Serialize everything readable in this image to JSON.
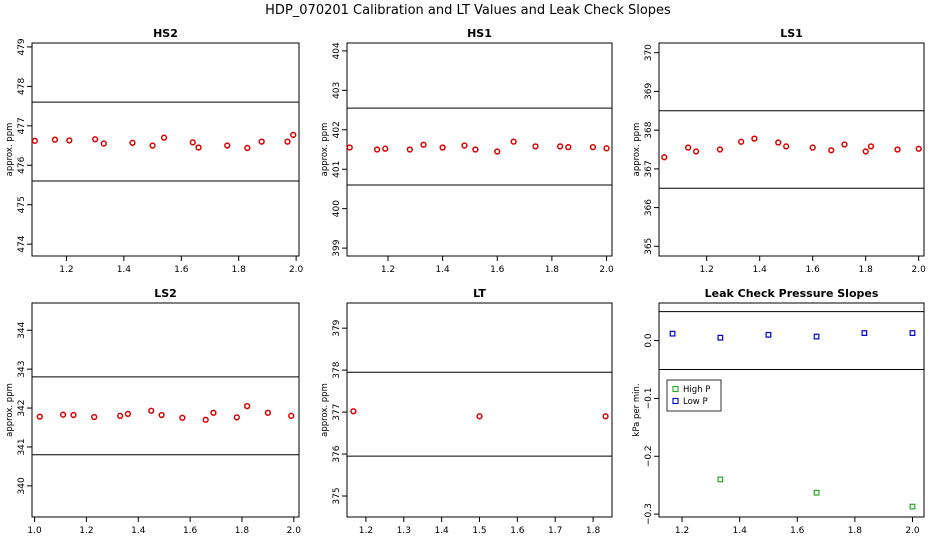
{
  "title": "HDP_070201 Calibration and LT Values and Leak Check Slopes",
  "colors": {
    "points": "#dd0000",
    "high_p": "#22aa22",
    "low_p": "#0000cc",
    "ref_line": "#000000"
  },
  "chart_data": [
    {
      "id": "hs2",
      "type": "scatter",
      "title": "HS2",
      "ylabel": "approx. ppm",
      "xlim": [
        1.08,
        2.01
      ],
      "ylim": [
        473.7,
        479.1
      ],
      "xticks": [
        1.2,
        1.4,
        1.6,
        1.8,
        2.0
      ],
      "xtick_labels": [
        "1.2",
        "1.4",
        "1.6",
        "1.8",
        "2.0"
      ],
      "yticks": [
        474,
        475,
        476,
        477,
        478,
        479
      ],
      "ytick_labels": [
        "474",
        "475",
        "476",
        "477",
        "478",
        "479"
      ],
      "hlines": [
        475.6,
        477.6
      ],
      "x": [
        1.09,
        1.16,
        1.21,
        1.3,
        1.33,
        1.43,
        1.5,
        1.54,
        1.64,
        1.66,
        1.76,
        1.83,
        1.88,
        1.97,
        1.99
      ],
      "y": [
        476.62,
        476.65,
        476.63,
        476.66,
        476.55,
        476.57,
        476.5,
        476.7,
        476.58,
        476.45,
        476.5,
        476.44,
        476.6,
        476.6,
        476.77
      ]
    },
    {
      "id": "hs1",
      "type": "scatter",
      "title": "HS1",
      "ylabel": "approx. ppm",
      "xlim": [
        1.05,
        2.02
      ],
      "ylim": [
        398.8,
        404.2
      ],
      "xticks": [
        1.2,
        1.4,
        1.6,
        1.8,
        2.0
      ],
      "xtick_labels": [
        "1.2",
        "1.4",
        "1.6",
        "1.8",
        "2.0"
      ],
      "yticks": [
        399,
        400,
        401,
        402,
        403,
        404
      ],
      "ytick_labels": [
        "399",
        "400",
        "401",
        "402",
        "403",
        "404"
      ],
      "hlines": [
        400.6,
        402.55
      ],
      "x": [
        1.06,
        1.16,
        1.19,
        1.28,
        1.33,
        1.4,
        1.48,
        1.52,
        1.6,
        1.66,
        1.74,
        1.83,
        1.86,
        1.95,
        2.0
      ],
      "y": [
        401.55,
        401.5,
        401.52,
        401.5,
        401.62,
        401.55,
        401.6,
        401.5,
        401.45,
        401.7,
        401.58,
        401.58,
        401.56,
        401.56,
        401.53
      ]
    },
    {
      "id": "ls1",
      "type": "scatter",
      "title": "LS1",
      "ylabel": "approx. ppm",
      "xlim": [
        1.02,
        2.02
      ],
      "ylim": [
        364.75,
        370.25
      ],
      "xticks": [
        1.2,
        1.4,
        1.6,
        1.8,
        2.0
      ],
      "xtick_labels": [
        "1.2",
        "1.4",
        "1.6",
        "1.8",
        "2.0"
      ],
      "yticks": [
        365,
        366,
        367,
        368,
        369,
        370
      ],
      "ytick_labels": [
        "365",
        "366",
        "367",
        "368",
        "369",
        "370"
      ],
      "hlines": [
        366.5,
        368.5
      ],
      "x": [
        1.04,
        1.13,
        1.16,
        1.25,
        1.33,
        1.38,
        1.47,
        1.5,
        1.6,
        1.67,
        1.72,
        1.8,
        1.82,
        1.92,
        2.0
      ],
      "y": [
        367.3,
        367.55,
        367.45,
        367.5,
        367.7,
        367.78,
        367.68,
        367.58,
        367.55,
        367.48,
        367.63,
        367.45,
        367.58,
        367.5,
        367.52
      ]
    },
    {
      "id": "ls2",
      "type": "scatter",
      "title": "LS2",
      "ylabel": "approx. ppm",
      "xlim": [
        0.99,
        2.02
      ],
      "ylim": [
        339.2,
        344.7
      ],
      "xticks": [
        1.0,
        1.2,
        1.4,
        1.6,
        1.8,
        2.0
      ],
      "xtick_labels": [
        "1.0",
        "1.2",
        "1.4",
        "1.6",
        "1.8",
        "2.0"
      ],
      "yticks": [
        340,
        341,
        342,
        343,
        344
      ],
      "ytick_labels": [
        "340",
        "341",
        "342",
        "343",
        "344"
      ],
      "hlines": [
        340.8,
        342.8
      ],
      "x": [
        1.02,
        1.11,
        1.15,
        1.23,
        1.33,
        1.36,
        1.45,
        1.49,
        1.57,
        1.66,
        1.69,
        1.78,
        1.82,
        1.9,
        1.99
      ],
      "y": [
        341.78,
        341.83,
        341.82,
        341.77,
        341.8,
        341.85,
        341.93,
        341.82,
        341.75,
        341.7,
        341.88,
        341.76,
        342.05,
        341.88,
        341.8
      ]
    },
    {
      "id": "lt",
      "type": "scatter",
      "title": "LT",
      "ylabel": "approx. ppm",
      "xlim": [
        1.15,
        1.85
      ],
      "ylim": [
        374.5,
        379.6
      ],
      "xticks": [
        1.2,
        1.3,
        1.4,
        1.5,
        1.6,
        1.7,
        1.8
      ],
      "xtick_labels": [
        "1.2",
        "1.3",
        "1.4",
        "1.5",
        "1.6",
        "1.7",
        "1.8"
      ],
      "yticks": [
        375,
        376,
        377,
        378,
        379
      ],
      "ytick_labels": [
        "375",
        "376",
        "377",
        "378",
        "379"
      ],
      "hlines": [
        375.95,
        377.95
      ],
      "x": [
        1.167,
        1.5,
        1.833
      ],
      "y": [
        377.02,
        376.9,
        376.9
      ]
    },
    {
      "id": "leak",
      "type": "scatter",
      "title": "Leak Check Pressure Slopes",
      "ylabel": "kPa per min.",
      "xlim": [
        1.12,
        2.04
      ],
      "ylim": [
        -0.305,
        0.065
      ],
      "xticks": [
        1.2,
        1.4,
        1.6,
        1.8,
        2.0
      ],
      "xtick_labels": [
        "1.2",
        "1.4",
        "1.6",
        "1.8",
        "2.0"
      ],
      "yticks": [
        -0.3,
        -0.2,
        -0.1,
        0.0
      ],
      "ytick_labels": [
        "−0.3",
        "−0.2",
        "−0.1",
        "0.0"
      ],
      "hlines": [
        0.05,
        -0.05
      ],
      "series": [
        {
          "name": "High P",
          "x": [
            1.333,
            1.667,
            2.0
          ],
          "y": [
            -0.24,
            -0.263,
            -0.287
          ]
        },
        {
          "name": "Low P",
          "x": [
            1.167,
            1.333,
            1.5,
            1.667,
            1.833,
            2.0
          ],
          "y": [
            0.012,
            0.005,
            0.01,
            0.007,
            0.013,
            0.013
          ]
        }
      ],
      "legend_position": "left"
    }
  ]
}
